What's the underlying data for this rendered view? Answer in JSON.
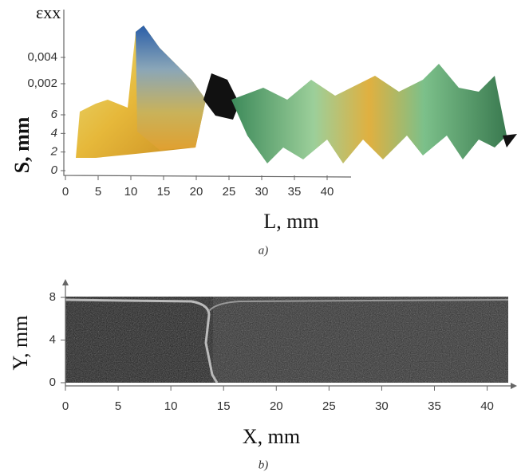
{
  "chart_data": [
    {
      "type": "surface",
      "zlabel": "εxx",
      "zticks": [
        {
          "value": 0.002,
          "label": "0,002"
        },
        {
          "value": 0.004,
          "label": "0,004"
        }
      ],
      "ylabel": "S, mm",
      "yticks": [
        0,
        2,
        4,
        6
      ],
      "xlabel": "L, mm",
      "xticks": [
        0,
        5,
        10,
        15,
        20,
        25,
        30,
        35,
        40
      ],
      "caption": "a)"
    },
    {
      "type": "image",
      "ylabel": "Y, mm",
      "yticks": [
        0,
        4,
        8
      ],
      "ylim": [
        0,
        8
      ],
      "xlabel": "X, mm",
      "xticks": [
        0,
        5,
        10,
        15,
        20,
        25,
        30,
        35,
        40
      ],
      "xlim": [
        0,
        42
      ],
      "caption": "b)"
    }
  ]
}
